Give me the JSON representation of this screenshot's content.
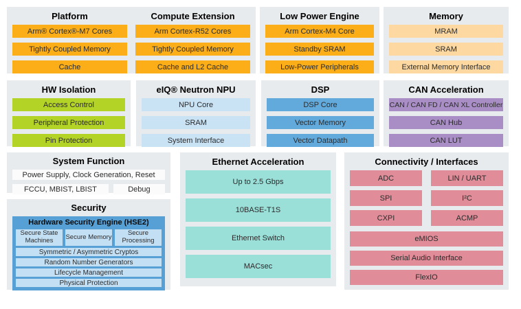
{
  "colors": {
    "panel_background": "#E8EBED",
    "platform_orange": "#FBAE17",
    "memory_peach": "#FDD9A1",
    "isolation_lime": "#B4D327",
    "npu_light_blue": "#C9E2F4",
    "dsp_blue": "#62A9DC",
    "can_purple": "#A98EC5",
    "ethernet_teal": "#9ADFD8",
    "connectivity_rose": "#E08D99",
    "security_container_blue": "#57A0D6",
    "security_block_blue": "#C3DFF4",
    "system_white": "#FBFBFB"
  },
  "panels": {
    "platform": {
      "title": "Platform",
      "items": [
        "Arm® Cortex®-M7 Cores",
        "Tightly Coupled Memory",
        "Cache"
      ]
    },
    "compute_extension": {
      "title": "Compute Extension",
      "items": [
        "Arm Cortex-R52 Cores",
        "Tightly Coupled Memory",
        "Cache and L2 Cache"
      ]
    },
    "low_power_engine": {
      "title": "Low Power Engine",
      "items": [
        "Arm Cortex-M4 Core",
        "Standby SRAM",
        "Low-Power Peripherals"
      ]
    },
    "memory": {
      "title": "Memory",
      "items": [
        "MRAM",
        "SRAM",
        "External Memory Interface"
      ]
    },
    "hw_isolation": {
      "title": "HW Isolation",
      "items": [
        "Access Control",
        "Peripheral Protection",
        "Pin Protection"
      ]
    },
    "npu": {
      "title": "eIQ® Neutron NPU",
      "items": [
        "NPU Core",
        "SRAM",
        "System Interface"
      ]
    },
    "dsp": {
      "title": "DSP",
      "items": [
        "DSP Core",
        "Vector Memory",
        "Vector Datapath"
      ]
    },
    "can_acceleration": {
      "title": "CAN Acceleration",
      "items": [
        "CAN / CAN FD / CAN XL Controller",
        "CAN Hub",
        "CAN LUT"
      ]
    },
    "system_function": {
      "title": "System Function",
      "row1": "Power Supply, Clock Generation, Reset",
      "row2_left": "FCCU, MBIST, LBIST",
      "row2_right": "Debug"
    },
    "security": {
      "title": "Security",
      "hse": {
        "title": "Hardware Security Engine (HSE2)",
        "top_row": [
          "Secure State Machines",
          "Secure Memory",
          "Secure Processing"
        ],
        "rows": [
          "Symmetric / Asymmetric Cryptos",
          "Random Number Generators",
          "Lifecycle Management",
          "Physical Protection"
        ]
      }
    },
    "ethernet": {
      "title": "Ethernet Acceleration",
      "items": [
        "Up to 2.5 Gbps",
        "10BASE-T1S",
        "Ethernet Switch",
        "MACsec"
      ]
    },
    "connectivity": {
      "title": "Connectivity / Interfaces",
      "grid": [
        [
          "ADC",
          "LIN / UART"
        ],
        [
          "SPI",
          "I²C"
        ],
        [
          "CXPI",
          "ACMP"
        ]
      ],
      "full": [
        "eMIOS",
        "Serial Audio Interface",
        "FlexIO"
      ]
    }
  }
}
